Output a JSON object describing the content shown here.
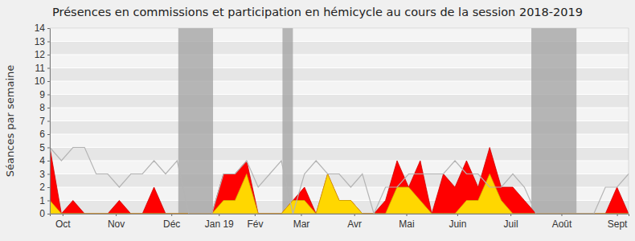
{
  "chart_data": {
    "type": "area",
    "title": "Présences en commissions et participation en hémicycle au cours de la session 2018-2019",
    "y_label": "Séances par semaine",
    "x": [
      0,
      1,
      2,
      3,
      4,
      5,
      6,
      7,
      8,
      9,
      10,
      11,
      12,
      13,
      14,
      15,
      16,
      17,
      18,
      19,
      20,
      21,
      22,
      23,
      24,
      25,
      26,
      27,
      28,
      29,
      30,
      31,
      32,
      33,
      34,
      35,
      36,
      37,
      38,
      39,
      40,
      41,
      42,
      43,
      44,
      45,
      46,
      47,
      48,
      49,
      50
    ],
    "xlim": [
      0,
      50
    ],
    "xticks": [
      {
        "value": 1.1,
        "label": "Oct"
      },
      {
        "value": 5.7,
        "label": "Nov"
      },
      {
        "value": 10.5,
        "label": "Déc"
      },
      {
        "value": 14.6,
        "label": "Jan 19"
      },
      {
        "value": 17.7,
        "label": "Fév"
      },
      {
        "value": 21.7,
        "label": "Mar"
      },
      {
        "value": 26.3,
        "label": "Avr"
      },
      {
        "value": 30.8,
        "label": "Mai"
      },
      {
        "value": 35.2,
        "label": "Juin"
      },
      {
        "value": 39.8,
        "label": "Juil"
      },
      {
        "value": 44.2,
        "label": "Août"
      },
      {
        "value": 49.0,
        "label": "Sept"
      }
    ],
    "ylim": [
      0,
      14
    ],
    "yticks": [
      0,
      1,
      2,
      3,
      4,
      5,
      6,
      7,
      8,
      9,
      10,
      11,
      12,
      13,
      14
    ],
    "grid": true,
    "shaded_ranges": [
      [
        11.1,
        14.1
      ],
      [
        20.1,
        21.0
      ],
      [
        41.6,
        45.5
      ]
    ],
    "series": [
      {
        "type": "line",
        "color": "#b4b4b4",
        "values": [
          5,
          4,
          5,
          5,
          3,
          3,
          2,
          3,
          3,
          4,
          3,
          4,
          0,
          0,
          0,
          3,
          3,
          4,
          2,
          3,
          4,
          0,
          3,
          4,
          3,
          3,
          2,
          3,
          0,
          2,
          2,
          3,
          3,
          3,
          3,
          4,
          3,
          3,
          2,
          2,
          3,
          2,
          0,
          0,
          0,
          0,
          0,
          0,
          2,
          2,
          3
        ]
      },
      {
        "type": "area",
        "color": "#ff0000",
        "values": [
          5,
          0,
          1,
          0,
          0,
          0,
          1,
          0,
          0,
          2,
          0,
          0,
          0,
          0,
          0,
          3,
          3,
          4,
          0,
          0,
          0,
          1,
          2,
          0,
          3,
          1,
          1,
          0,
          0,
          1,
          4,
          2,
          4,
          0,
          3,
          2,
          4,
          2,
          5,
          2,
          2,
          1,
          0,
          0,
          0,
          0,
          0,
          0,
          0,
          2,
          0
        ]
      },
      {
        "type": "area",
        "color": "#ffd700",
        "values": [
          1,
          0,
          0,
          0,
          0,
          0,
          0,
          0,
          0,
          0,
          0,
          0,
          0,
          0,
          0,
          1,
          1,
          3,
          0,
          0,
          0,
          1,
          1,
          0,
          3,
          1,
          1,
          0,
          0,
          0,
          2,
          2,
          1,
          0,
          0,
          0,
          1,
          1,
          3,
          1,
          0,
          0,
          0,
          0,
          0,
          0,
          0,
          0,
          0,
          0,
          0
        ]
      }
    ]
  }
}
